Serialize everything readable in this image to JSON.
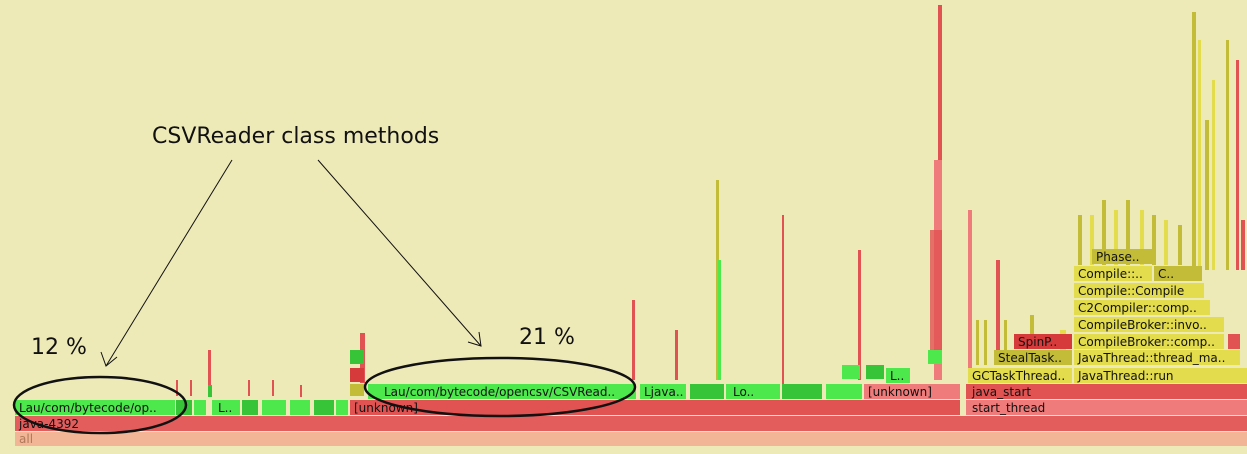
{
  "background": "#eeeab8",
  "annotations": {
    "title": "CSVReader class methods",
    "pct_left": "12 %",
    "pct_mid": "21 %"
  },
  "frames": {
    "all": "all",
    "java_proc": "java-4392",
    "unknown_1": "[unknown]",
    "unknown_2": "[unknown]",
    "lau_left": "Lau/com/bytecode/op..",
    "l_small": "L..",
    "lau_mid": "Lau/com/bytecode/opencsv/CSVRead..",
    "java_dots": "Ljava..",
    "lo": "Lo..",
    "l_right": "L..",
    "start_thread": "start_thread",
    "java_start": "java_start",
    "gctask": "GCTaskThread..",
    "javathread_run": "JavaThread::run",
    "stealtask": "StealTask..",
    "javathread_main": "JavaThread::thread_ma..",
    "spinp": "SpinP..",
    "compilebroker_comp": "CompileBroker::comp..",
    "compilebroker_invo": "CompileBroker::invo..",
    "c2compiler": "C2Compiler::comp..",
    "compile_compile": "Compile::Compile",
    "compile_dots": "Compile::..",
    "c_dots": "C..",
    "phase": "Phase.."
  },
  "colors": {
    "base_all": "#f2b596",
    "base_proc": "#e35d5d",
    "green_bright": "#4ce84c",
    "green_mid": "#38c438",
    "red_frame": "#e15252",
    "salmon": "#ef7b7b",
    "yellow_frame": "#e3dc4c",
    "olive_frame": "#c3bc38"
  }
}
